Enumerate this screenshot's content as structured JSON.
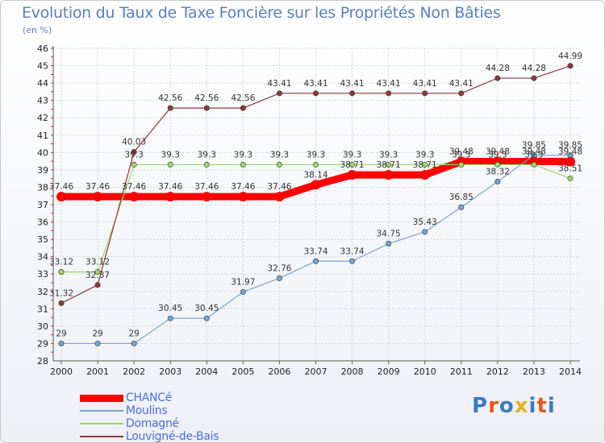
{
  "title": "Evolution du Taux de Taxe Foncière sur les Propriétés Non Bâties",
  "subtitle": "(en %)",
  "logo": {
    "text": "Proxiti",
    "letter_colors": [
      "#3a7ac8",
      "#e85a1e",
      "#3a7ac8",
      "#e8b21e",
      "#3a7ac8",
      "#e85a1e",
      "#3a7ac8"
    ]
  },
  "chart_data": {
    "type": "line",
    "title": "Evolution du Taux de Taxe Foncière sur les Propriétés Non Bâties",
    "ylabel": "(en %)",
    "xlabel": "",
    "x": [
      2000,
      2001,
      2002,
      2003,
      2004,
      2005,
      2006,
      2007,
      2008,
      2009,
      2010,
      2011,
      2012,
      2013,
      2014
    ],
    "ylim": [
      28,
      46
    ],
    "yticks": [
      28,
      29,
      30,
      31,
      32,
      33,
      34,
      35,
      36,
      37,
      38,
      39,
      40,
      41,
      42,
      43,
      44,
      45,
      46
    ],
    "grid": true,
    "legend": "bottom-left",
    "series": [
      {
        "name": "CHANCé",
        "color": "#ff0000",
        "values": [
          37.46,
          37.46,
          37.46,
          37.46,
          37.46,
          37.46,
          37.46,
          38.14,
          38.71,
          38.71,
          38.71,
          39.48,
          39.48,
          39.48,
          39.48
        ],
        "labels": [
          "37.46",
          "37.46",
          "37.46",
          "37.46",
          "37.46",
          "37.46",
          "37.46",
          "38.14",
          "38.71",
          "38.71",
          "38.71",
          "39.48",
          "39.48",
          "39.48",
          "39.48"
        ]
      },
      {
        "name": "Moulins",
        "color": "#74a5d8",
        "values": [
          29,
          29,
          29,
          30.45,
          30.45,
          31.97,
          32.76,
          33.74,
          33.74,
          34.75,
          35.43,
          36.85,
          38.32,
          39.85,
          39.85
        ],
        "labels": [
          "29",
          "29",
          "29",
          "30.45",
          "30.45",
          "31.97",
          "32.76",
          "33.74",
          "33.74",
          "34.75",
          "35.43",
          "36.85",
          "38.32",
          "39.85",
          "39.85"
        ]
      },
      {
        "name": "Domagné",
        "color": "#9ad86a",
        "values": [
          33.12,
          33.12,
          39.3,
          39.3,
          39.3,
          39.3,
          39.3,
          39.3,
          39.3,
          39.3,
          39.3,
          39.3,
          39.3,
          39.3,
          38.51
        ],
        "labels": [
          "33.12",
          "33.12",
          "39.3",
          "39.3",
          "39.3",
          "39.3",
          "39.3",
          "39.3",
          "39.3",
          "39.3",
          "39.3",
          "39.3",
          "39.3",
          "39.3",
          "38.51"
        ]
      },
      {
        "name": "Louvigné-de-Bais",
        "color": "#8b3a3a",
        "values": [
          31.32,
          32.37,
          40.03,
          42.56,
          42.56,
          42.56,
          43.41,
          43.41,
          43.41,
          43.41,
          43.41,
          43.41,
          44.28,
          44.28,
          44.99
        ],
        "labels": [
          "31.32",
          "32.37",
          "40.03",
          "42.56",
          "42.56",
          "42.56",
          "43.41",
          "43.41",
          "43.41",
          "43.41",
          "43.41",
          "43.41",
          "44.28",
          "44.28",
          "44.99"
        ]
      }
    ]
  }
}
